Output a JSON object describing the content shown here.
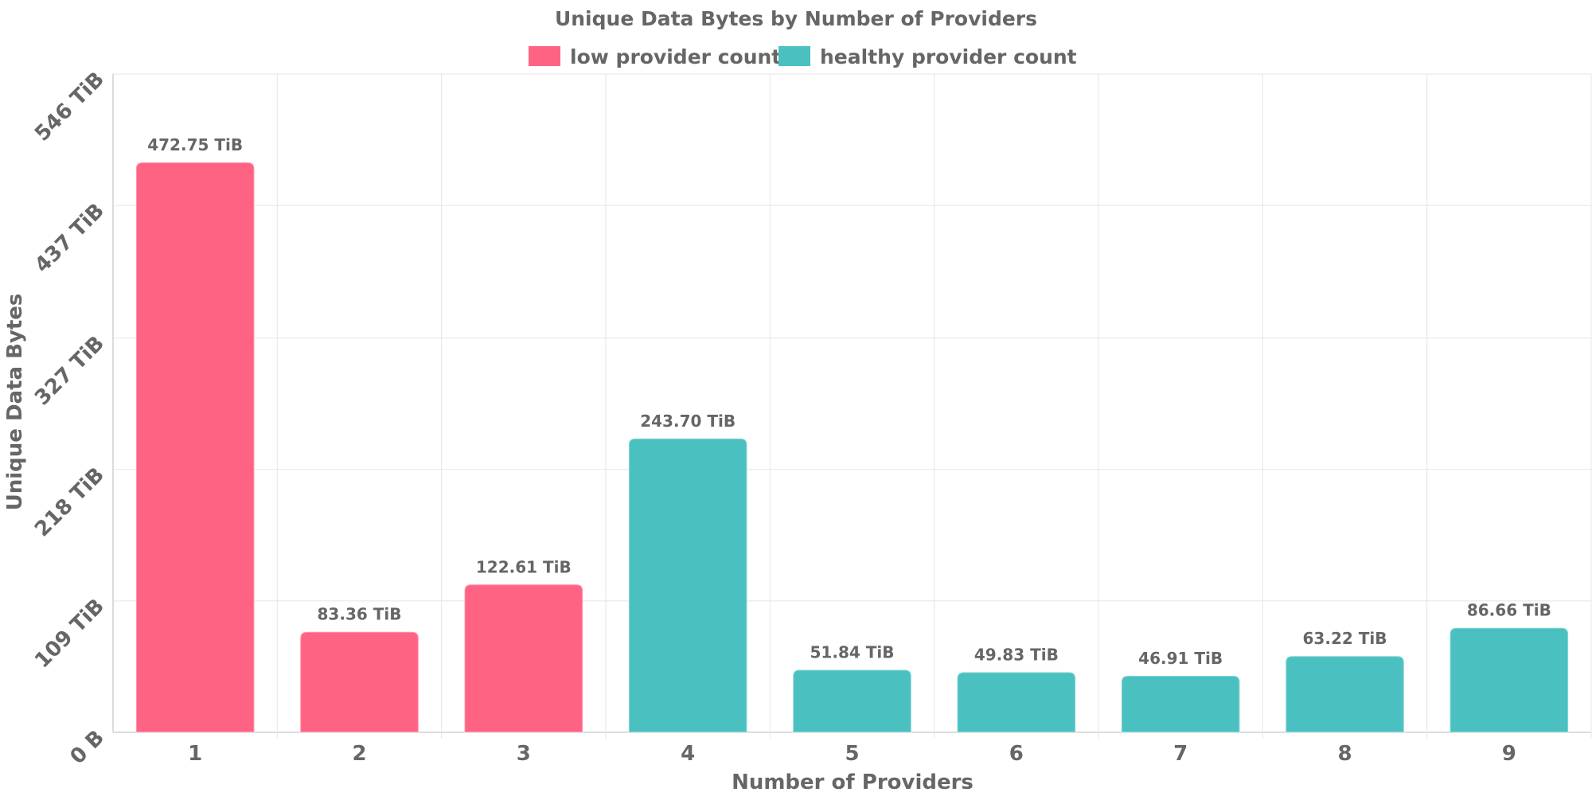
{
  "chart_data": {
    "type": "bar",
    "title": "Unique Data Bytes by Number of Providers",
    "xlabel": "Number of Providers",
    "ylabel": "Unique Data Bytes",
    "categories": [
      "1",
      "2",
      "3",
      "4",
      "5",
      "6",
      "7",
      "8",
      "9"
    ],
    "values": [
      472.75,
      83.36,
      122.61,
      243.7,
      51.84,
      49.83,
      46.91,
      63.22,
      86.66
    ],
    "value_unit": "TiB",
    "data_labels": [
      "472.75 TiB",
      "83.36 TiB",
      "122.61 TiB",
      "243.70 TiB",
      "51.84 TiB",
      "49.83 TiB",
      "46.91 TiB",
      "63.22 TiB",
      "86.66 TiB"
    ],
    "groups": [
      "low",
      "low",
      "low",
      "healthy",
      "healthy",
      "healthy",
      "healthy",
      "healthy",
      "healthy"
    ],
    "legend": [
      {
        "key": "low",
        "label": "low provider count",
        "color": "#ff6384"
      },
      {
        "key": "healthy",
        "label": "healthy provider count",
        "color": "#4bc0c0"
      }
    ],
    "legend_position": "top",
    "ylim": [
      0,
      546
    ],
    "y_ticks": [
      0,
      109,
      218,
      327,
      437,
      546
    ],
    "y_tick_labels": [
      "0 B",
      "109 TiB",
      "218 TiB",
      "327 TiB",
      "437 TiB",
      "546 TiB"
    ],
    "grid": true
  }
}
